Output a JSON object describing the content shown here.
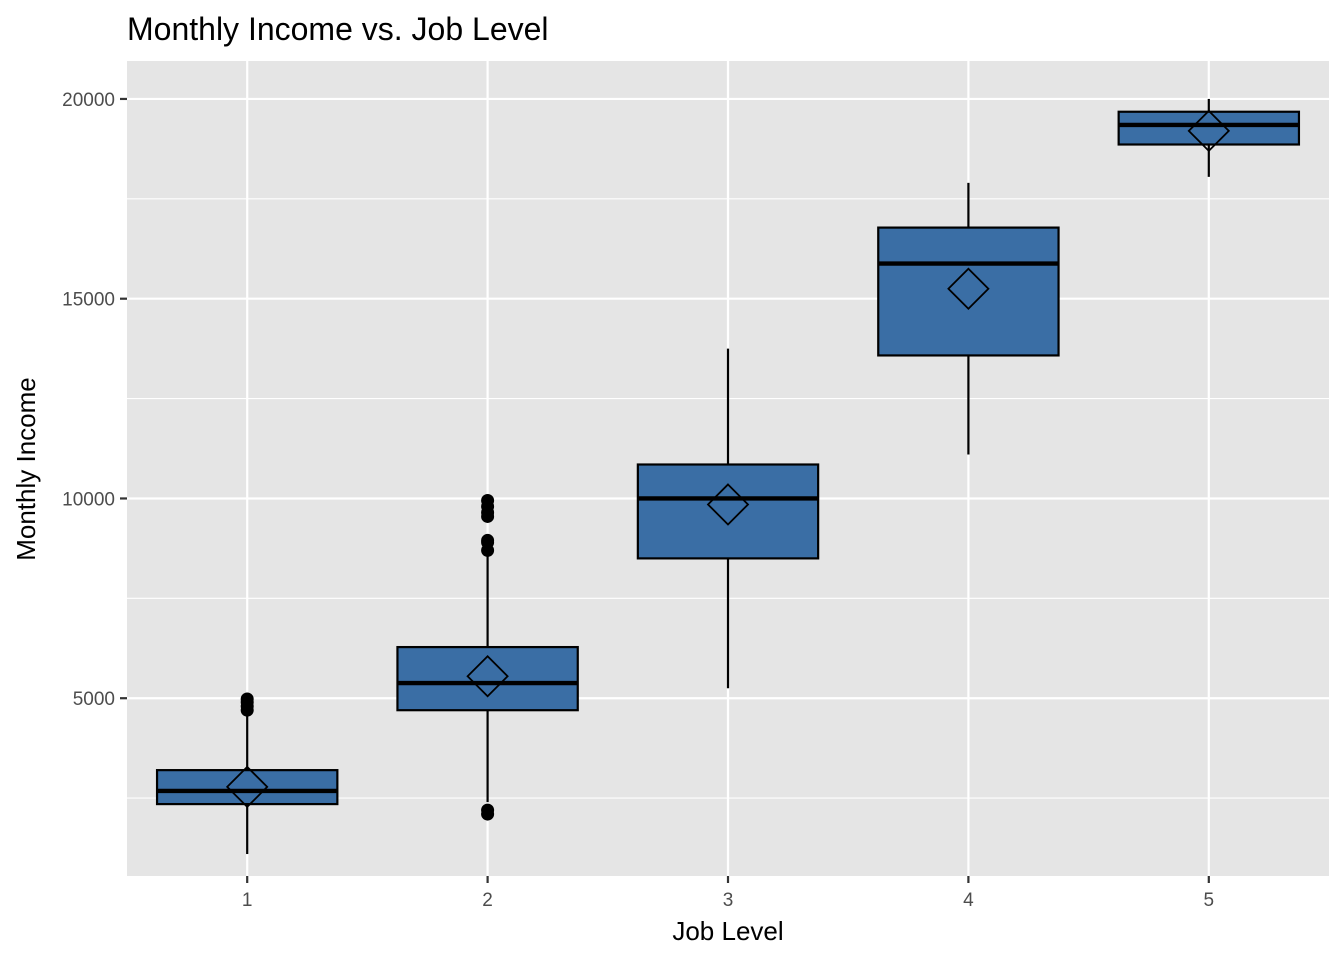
{
  "chart_data": {
    "type": "box",
    "title": "Monthly Income vs. Job Level",
    "xlabel": "Job Level",
    "ylabel": "Monthly Income",
    "categories": [
      "1",
      "2",
      "3",
      "4",
      "5"
    ],
    "ylim": [
      550,
      20950
    ],
    "yticks": [
      5000,
      10000,
      15000,
      20000
    ],
    "grid": true,
    "legend": "none",
    "colors": {
      "panel": "#e5e5e5",
      "grid": "#ffffff",
      "box_fill": "#3a6ea5",
      "box_stroke": "#000000",
      "tick_text": "#4d4d4d"
    },
    "boxes": [
      {
        "level": "1",
        "whisker_low": 1100,
        "q1": 2350,
        "median": 2680,
        "q3": 3200,
        "whisker_high": 4550,
        "mean": 2780,
        "outliers": [
          4700,
          4800,
          4900,
          4980
        ]
      },
      {
        "level": "2",
        "whisker_low": 2400,
        "q1": 4700,
        "median": 5380,
        "q3": 6280,
        "whisker_high": 8600,
        "mean": 5550,
        "outliers": [
          2100,
          2200,
          8700,
          8900,
          8950,
          9550,
          9650,
          9800,
          9950
        ]
      },
      {
        "level": "3",
        "whisker_low": 5250,
        "q1": 8500,
        "median": 10000,
        "q3": 10850,
        "whisker_high": 13750,
        "mean": 9850,
        "outliers": []
      },
      {
        "level": "4",
        "whisker_low": 11100,
        "q1": 13580,
        "median": 15880,
        "q3": 16780,
        "whisker_high": 17900,
        "mean": 15250,
        "outliers": []
      },
      {
        "level": "5",
        "whisker_low": 18050,
        "q1": 18860,
        "median": 19350,
        "q3": 19680,
        "whisker_high": 20000,
        "mean": 19200,
        "outliers": []
      }
    ]
  }
}
